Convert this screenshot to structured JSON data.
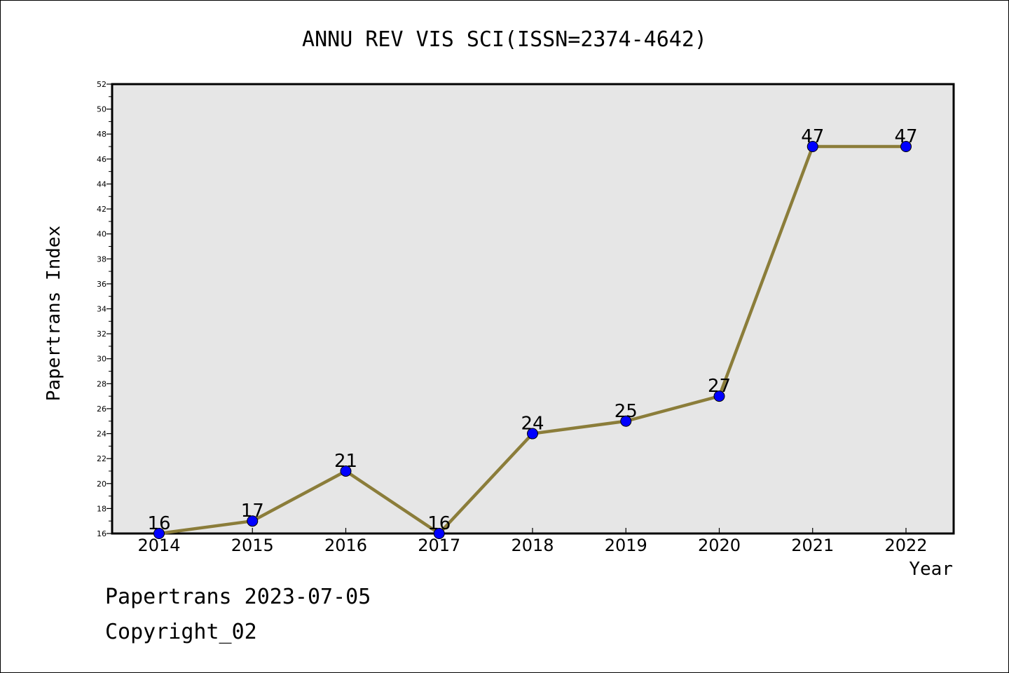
{
  "chart_data": {
    "type": "line",
    "title": "ANNU REV VIS SCI(ISSN=2374-4642)",
    "xlabel": "Year",
    "ylabel": "Papertrans Index",
    "categories": [
      "2014",
      "2015",
      "2016",
      "2017",
      "2018",
      "2019",
      "2020",
      "2021",
      "2022"
    ],
    "series": [
      {
        "values": [
          16,
          17,
          21,
          16,
          24,
          25,
          27,
          47,
          47
        ]
      }
    ],
    "data_labels": [
      "16",
      "17",
      "21",
      "16",
      "24",
      "25",
      "27",
      "47",
      "47"
    ],
    "ylim": [
      16,
      52
    ],
    "y_ticks": [
      "16",
      "18",
      "20",
      "22",
      "24",
      "26",
      "28",
      "30",
      "32",
      "34",
      "36",
      "38",
      "40",
      "42",
      "44",
      "46",
      "48",
      "50",
      "52"
    ],
    "grid": false,
    "plot_background": "#e6e6e6",
    "line_color": "#8b7d3a",
    "marker_color": "#0000ff"
  },
  "footer": {
    "date_text": "Papertrans 2023-07-05",
    "copyright_text": "Copyright_02"
  }
}
